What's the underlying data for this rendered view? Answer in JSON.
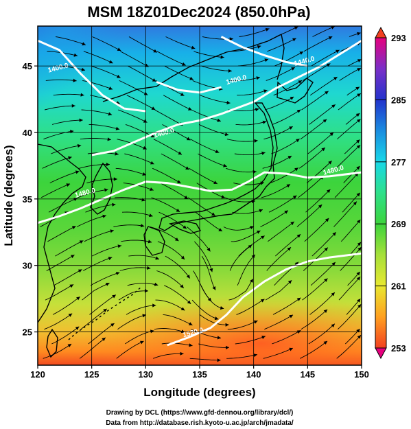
{
  "title": "MSM 18Z01Dec2024 (850.0hPa)",
  "xlabel": "Longitude (degrees)",
  "ylabel": "Latitude  (degrees)",
  "credits": [
    "Drawing by DCL (https://www.gfd-dennou.org/library/dcl/)",
    "Data from http://database.rish.kyoto-u.ac.jp/arch/jmadata/"
  ],
  "chart_data": {
    "type": "heatmap",
    "x_axis": {
      "min": 120,
      "max": 150,
      "ticks": [
        120,
        125,
        130,
        135,
        140,
        145,
        150
      ],
      "tick_labels": [
        "120",
        "125",
        "130",
        "135",
        "140",
        "145",
        "150"
      ]
    },
    "y_axis": {
      "min": 22.5,
      "max": 48,
      "ticks": [
        25,
        30,
        35,
        40,
        45
      ],
      "tick_labels": [
        "25",
        "30",
        "35",
        "40",
        "45"
      ]
    },
    "grid": true,
    "colorbar": {
      "min": 253,
      "max": 293,
      "labels": [
        "293",
        "285",
        "277",
        "269",
        "261",
        "253"
      ],
      "label_values": [
        293,
        285,
        277,
        269,
        261,
        253
      ],
      "colors": [
        "#e6007e",
        "#7a2fc8",
        "#2233cc",
        "#1a8de0",
        "#18d8e8",
        "#2ee08a",
        "#3cd43c",
        "#a6e03a",
        "#e8e830",
        "#ffa020",
        "#f24020"
      ]
    },
    "contours": [
      {
        "label": "1400.0",
        "label_pos": [
          121,
          44.5
        ],
        "points": [
          [
            120,
            46.9
          ],
          [
            122,
            46.2
          ],
          [
            124,
            44.4
          ],
          [
            126,
            42.8
          ],
          [
            128,
            41.8
          ],
          [
            130,
            41.6
          ]
        ]
      },
      {
        "label": "1400.0",
        "label_pos": [
          130.8,
          39.6
        ],
        "points": [
          [
            125,
            38.3
          ],
          [
            127,
            38.6
          ],
          [
            129,
            39.3
          ],
          [
            131,
            40.0
          ],
          [
            133,
            40.6
          ],
          [
            135,
            40.9
          ],
          [
            137,
            41.4
          ],
          [
            140,
            42.3
          ],
          [
            142,
            43.3
          ],
          [
            144,
            44.1
          ],
          [
            146,
            44.9
          ],
          [
            148,
            45.9
          ],
          [
            150,
            46.9
          ]
        ]
      },
      {
        "label": "1480.0",
        "label_pos": [
          123.5,
          35.1
        ],
        "points": [
          [
            120,
            33.2
          ],
          [
            122,
            33.7
          ],
          [
            124,
            34.3
          ],
          [
            126,
            35.0
          ],
          [
            128,
            35.7
          ],
          [
            130,
            36.3
          ],
          [
            132,
            36.2
          ],
          [
            134,
            35.9
          ],
          [
            136,
            35.6
          ],
          [
            138,
            35.7
          ],
          [
            139.5,
            36.3
          ],
          [
            141,
            37.0
          ],
          [
            143,
            36.9
          ],
          [
            145,
            36.6
          ],
          [
            147,
            36.7
          ],
          [
            150,
            37.0
          ]
        ]
      },
      {
        "label": "1480.0",
        "label_pos": [
          146.5,
          36.8
        ],
        "points": []
      },
      {
        "label": "1520.0",
        "label_pos": [
          133.5,
          24.6
        ],
        "points": [
          [
            132,
            24.0
          ],
          [
            134,
            24.6
          ],
          [
            136,
            25.3
          ],
          [
            137.5,
            26.3
          ],
          [
            139,
            27.6
          ],
          [
            141,
            28.8
          ],
          [
            143,
            29.7
          ],
          [
            145,
            30.3
          ],
          [
            147,
            30.6
          ],
          [
            150,
            30.9
          ]
        ]
      },
      {
        "label": "1400.0",
        "label_pos": [
          137.5,
          43.6
        ],
        "points": [
          [
            131,
            43.8
          ],
          [
            133,
            43.2
          ],
          [
            135,
            43.0
          ],
          [
            137,
            43.4
          ]
        ]
      },
      {
        "label": "1440.0",
        "label_pos": [
          143.8,
          45.0
        ],
        "points": [
          [
            137,
            47.2
          ],
          [
            139,
            46.4
          ],
          [
            141,
            45.8
          ],
          [
            143,
            45.3
          ],
          [
            145,
            45.0
          ]
        ]
      }
    ],
    "contour_units": "",
    "field_variable": "",
    "vector_field": "wind streamlines"
  }
}
